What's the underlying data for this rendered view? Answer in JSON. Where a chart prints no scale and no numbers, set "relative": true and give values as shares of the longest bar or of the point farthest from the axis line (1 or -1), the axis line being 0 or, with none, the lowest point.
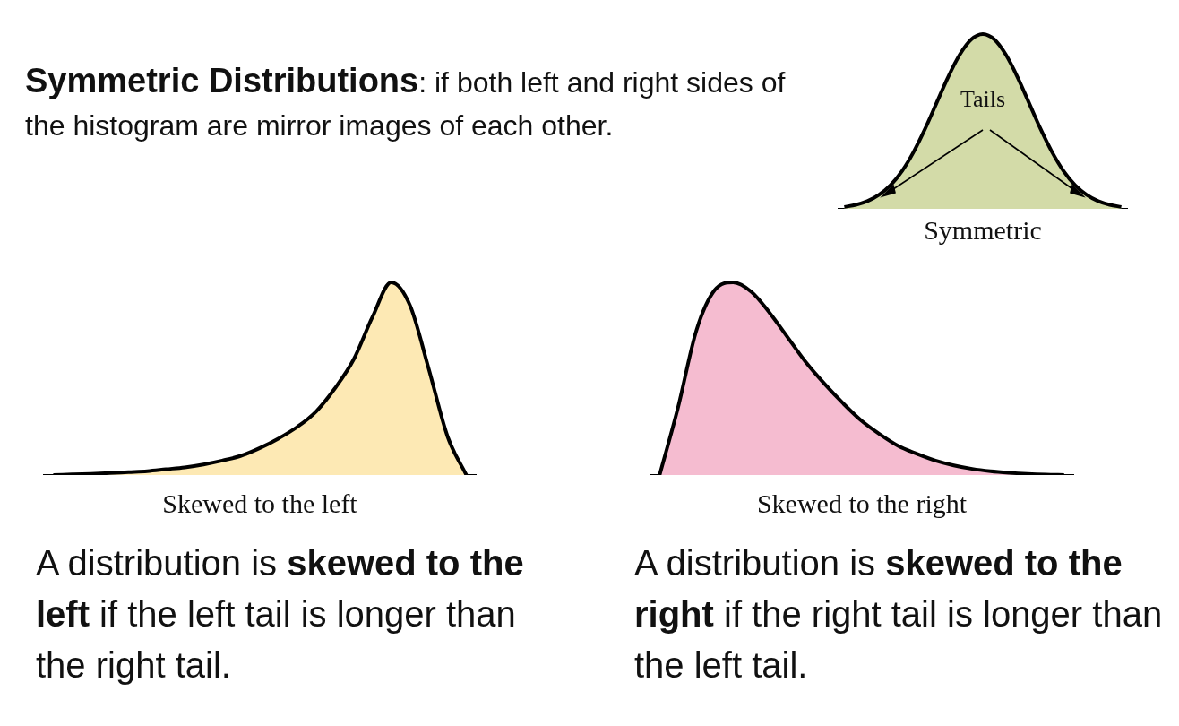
{
  "chart_data": [
    {
      "type": "other",
      "title": "Symmetric Distributions",
      "subtitle": ": if both left and right sides of the histogram are mirror images of each other."
    },
    {
      "type": "area",
      "xlabel": "Symmetric",
      "annotations": [
        "Tails"
      ],
      "relative": true,
      "tick_labels": false,
      "marker": "none",
      "categories": [
        null,
        null,
        null,
        null,
        null,
        null,
        null,
        null,
        null,
        null,
        null,
        null,
        null,
        null,
        null,
        null,
        null,
        null,
        null,
        null,
        null,
        null,
        null,
        null,
        null
      ],
      "series": [
        {
          "color": "#d3dba8",
          "values": [
            0.011,
            0.023,
            0.044,
            0.08,
            0.135,
            0.216,
            0.325,
            0.458,
            0.607,
            0.755,
            0.882,
            0.969,
            1,
            0.969,
            0.882,
            0.755,
            0.607,
            0.458,
            0.325,
            0.216,
            0.135,
            0.08,
            0.044,
            0.023,
            0.011
          ]
        }
      ]
    },
    {
      "type": "area",
      "xlabel": "Skewed to the left",
      "annotations": [
        "A distribution is ",
        "skewed to the left",
        " if the left tail is longer than the right tail."
      ],
      "relative": true,
      "tick_labels": false,
      "marker": "none",
      "categories": [
        null,
        null,
        null,
        null,
        null,
        null,
        null,
        null,
        null,
        null,
        null,
        null,
        null,
        null,
        null,
        null,
        null,
        null,
        null,
        null,
        null,
        null,
        null
      ],
      "series": [
        {
          "color": "#fde9b4",
          "values": [
            0,
            0.003,
            0.006,
            0.01,
            0.015,
            0.02,
            0.03,
            0.04,
            0.055,
            0.075,
            0.1,
            0.14,
            0.19,
            0.25,
            0.33,
            0.45,
            0.6,
            0.82,
            1,
            0.88,
            0.55,
            0.2,
            0
          ]
        }
      ]
    },
    {
      "type": "area",
      "xlabel": "Skewed to the right",
      "annotations": [
        "A distribution is ",
        "skewed to the right",
        " if the right tail is longer than the left tail."
      ],
      "relative": true,
      "tick_labels": false,
      "marker": "none",
      "categories": [
        null,
        null,
        null,
        null,
        null,
        null,
        null,
        null,
        null,
        null,
        null,
        null,
        null,
        null,
        null,
        null,
        null,
        null,
        null,
        null,
        null,
        null,
        null
      ],
      "series": [
        {
          "color": "#f5bcd0",
          "values": [
            0,
            0.35,
            0.75,
            0.96,
            1,
            0.95,
            0.84,
            0.71,
            0.58,
            0.47,
            0.37,
            0.28,
            0.21,
            0.15,
            0.11,
            0.075,
            0.05,
            0.032,
            0.02,
            0.012,
            0.006,
            0.002,
            0
          ]
        }
      ]
    }
  ]
}
